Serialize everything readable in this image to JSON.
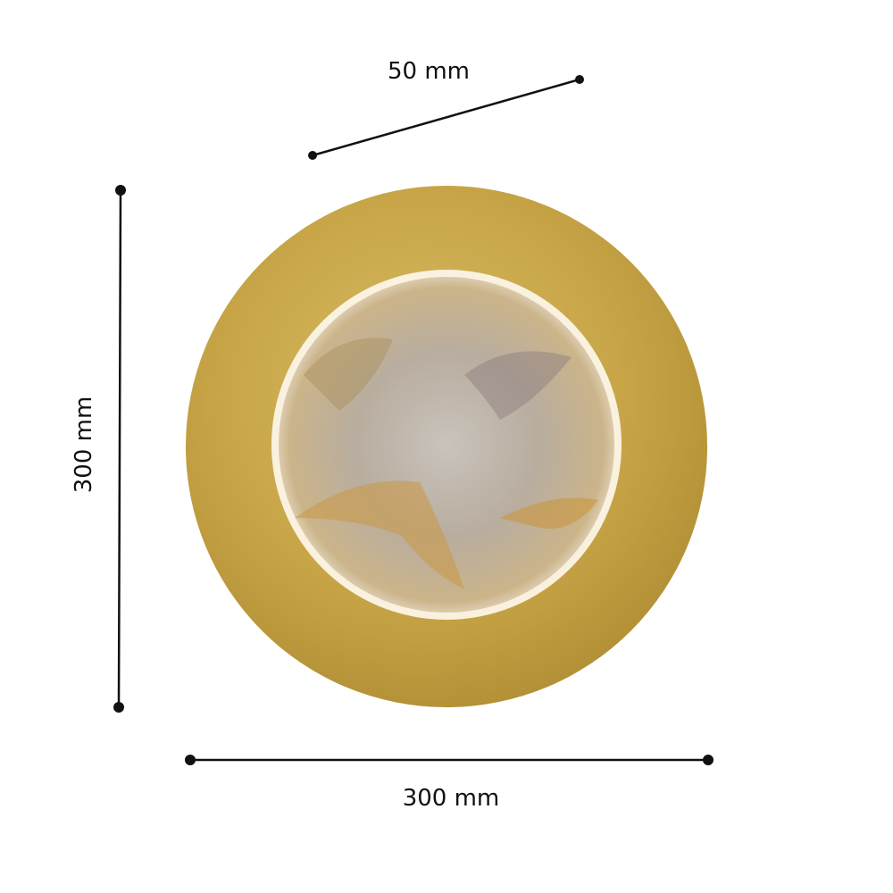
{
  "dimensions": {
    "depth_label": "50 mm",
    "height_label": "300 mm",
    "width_label": "300 mm"
  },
  "colors": {
    "brass": "#c9a84a",
    "line": "#111111"
  }
}
